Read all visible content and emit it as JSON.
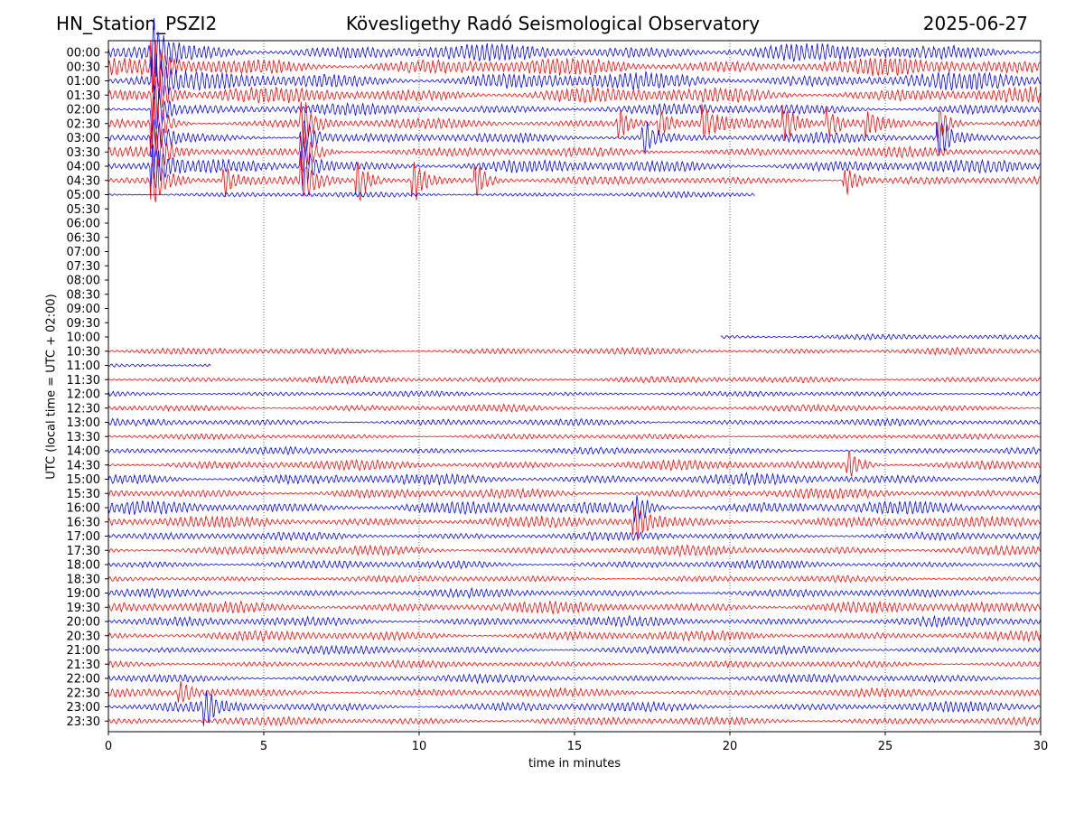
{
  "header": {
    "station": "HN_Station_PSZI2",
    "observatory": "Kövesligethy Radó Seismological Observatory",
    "date": "2025-06-27"
  },
  "chart_data": {
    "type": "line",
    "title": "Kövesligethy Radó Seismological Observatory",
    "xlabel": "time in minutes",
    "ylabel": "UTC (local time = UTC + 02:00)",
    "xlim": [
      0,
      30
    ],
    "x_ticks": [
      "0",
      "5",
      "10",
      "15",
      "20",
      "25",
      "30"
    ],
    "vertical_gridlines_at_minutes": [
      5,
      10,
      15,
      20,
      25
    ],
    "grid": "dotted vertical",
    "series_colors": [
      "#0000ff",
      "#ff0000"
    ],
    "row_labels": [
      "00:00",
      "00:30",
      "01:00",
      "01:30",
      "02:00",
      "02:30",
      "03:00",
      "03:30",
      "04:00",
      "04:30",
      "05:00",
      "05:30",
      "06:00",
      "06:30",
      "07:00",
      "07:30",
      "08:00",
      "08:30",
      "09:00",
      "09:30",
      "10:00",
      "10:30",
      "11:00",
      "11:30",
      "12:00",
      "12:30",
      "13:00",
      "13:30",
      "14:00",
      "14:30",
      "15:00",
      "15:30",
      "16:00",
      "16:30",
      "17:00",
      "17:30",
      "18:00",
      "18:30",
      "19:00",
      "19:30",
      "20:00",
      "20:30",
      "21:00",
      "21:30",
      "22:00",
      "22:30",
      "23:00",
      "23:30"
    ],
    "row_data_coverage_minutes": [
      [
        0,
        30
      ],
      [
        0,
        30
      ],
      [
        0,
        30
      ],
      [
        0,
        30
      ],
      [
        0,
        30
      ],
      [
        0,
        30
      ],
      [
        0,
        30
      ],
      [
        0,
        30
      ],
      [
        0,
        30
      ],
      [
        0,
        30
      ],
      [
        0,
        20.8
      ],
      null,
      null,
      null,
      null,
      null,
      null,
      null,
      null,
      null,
      [
        19.7,
        30
      ],
      [
        0,
        30
      ],
      [
        0,
        3.3
      ],
      [
        0,
        30
      ],
      [
        0,
        30
      ],
      [
        0,
        30
      ],
      [
        0,
        30
      ],
      [
        0,
        30
      ],
      [
        0,
        30
      ],
      [
        0,
        30
      ],
      [
        0,
        30
      ],
      [
        0,
        30
      ],
      [
        0,
        30
      ],
      [
        0,
        30
      ],
      [
        0,
        30
      ],
      [
        0,
        30
      ],
      [
        0,
        30
      ],
      [
        0,
        30
      ],
      [
        0,
        30
      ],
      [
        0,
        30
      ],
      [
        0,
        30
      ],
      [
        0,
        30
      ],
      [
        0,
        30
      ],
      [
        0,
        30
      ],
      [
        0,
        30
      ],
      [
        0,
        30
      ],
      [
        0,
        30
      ],
      [
        0,
        30
      ]
    ],
    "row_activity_level": [
      10,
      10,
      10,
      9,
      6,
      5,
      5,
      5,
      7,
      4,
      2,
      0,
      0,
      0,
      0,
      0,
      0,
      0,
      0,
      0,
      2,
      3,
      2,
      3,
      2,
      3,
      3,
      2,
      3,
      5,
      6,
      5,
      7,
      6,
      4,
      5,
      4,
      3,
      4,
      6,
      5,
      5,
      4,
      3,
      4,
      4,
      5,
      4
    ],
    "events": [
      {
        "rows": [
          0,
          1,
          2,
          3,
          4,
          5,
          6,
          7,
          8,
          9
        ],
        "minute": 1.5,
        "strength": 10
      },
      {
        "rows": [
          5,
          6,
          7,
          8,
          9
        ],
        "minute": 6.3,
        "strength": 8
      },
      {
        "rows": [
          5
        ],
        "minute": 16.5,
        "strength": 6
      },
      {
        "rows": [
          5
        ],
        "minute": 17.8,
        "strength": 5
      },
      {
        "rows": [
          5
        ],
        "minute": 19.2,
        "strength": 6
      },
      {
        "rows": [
          5
        ],
        "minute": 21.8,
        "strength": 6
      },
      {
        "rows": [
          5
        ],
        "minute": 23.2,
        "strength": 5
      },
      {
        "rows": [
          5
        ],
        "minute": 24.5,
        "strength": 4
      },
      {
        "rows": [
          5,
          6
        ],
        "minute": 26.8,
        "strength": 7
      },
      {
        "rows": [
          6
        ],
        "minute": 17.3,
        "strength": 6
      },
      {
        "rows": [
          9
        ],
        "minute": 8.1,
        "strength": 7
      },
      {
        "rows": [
          9
        ],
        "minute": 9.9,
        "strength": 7
      },
      {
        "rows": [
          9
        ],
        "minute": 11.9,
        "strength": 6
      },
      {
        "rows": [
          9
        ],
        "minute": 23.8,
        "strength": 5
      },
      {
        "rows": [
          9
        ],
        "minute": 3.8,
        "strength": 5
      },
      {
        "rows": [
          45
        ],
        "minute": 2.4,
        "strength": 4
      },
      {
        "rows": [
          46
        ],
        "minute": 3.2,
        "strength": 5
      },
      {
        "rows": [
          32,
          33
        ],
        "minute": 17.0,
        "strength": 6
      },
      {
        "rows": [
          29
        ],
        "minute": 23.9,
        "strength": 5
      }
    ]
  }
}
